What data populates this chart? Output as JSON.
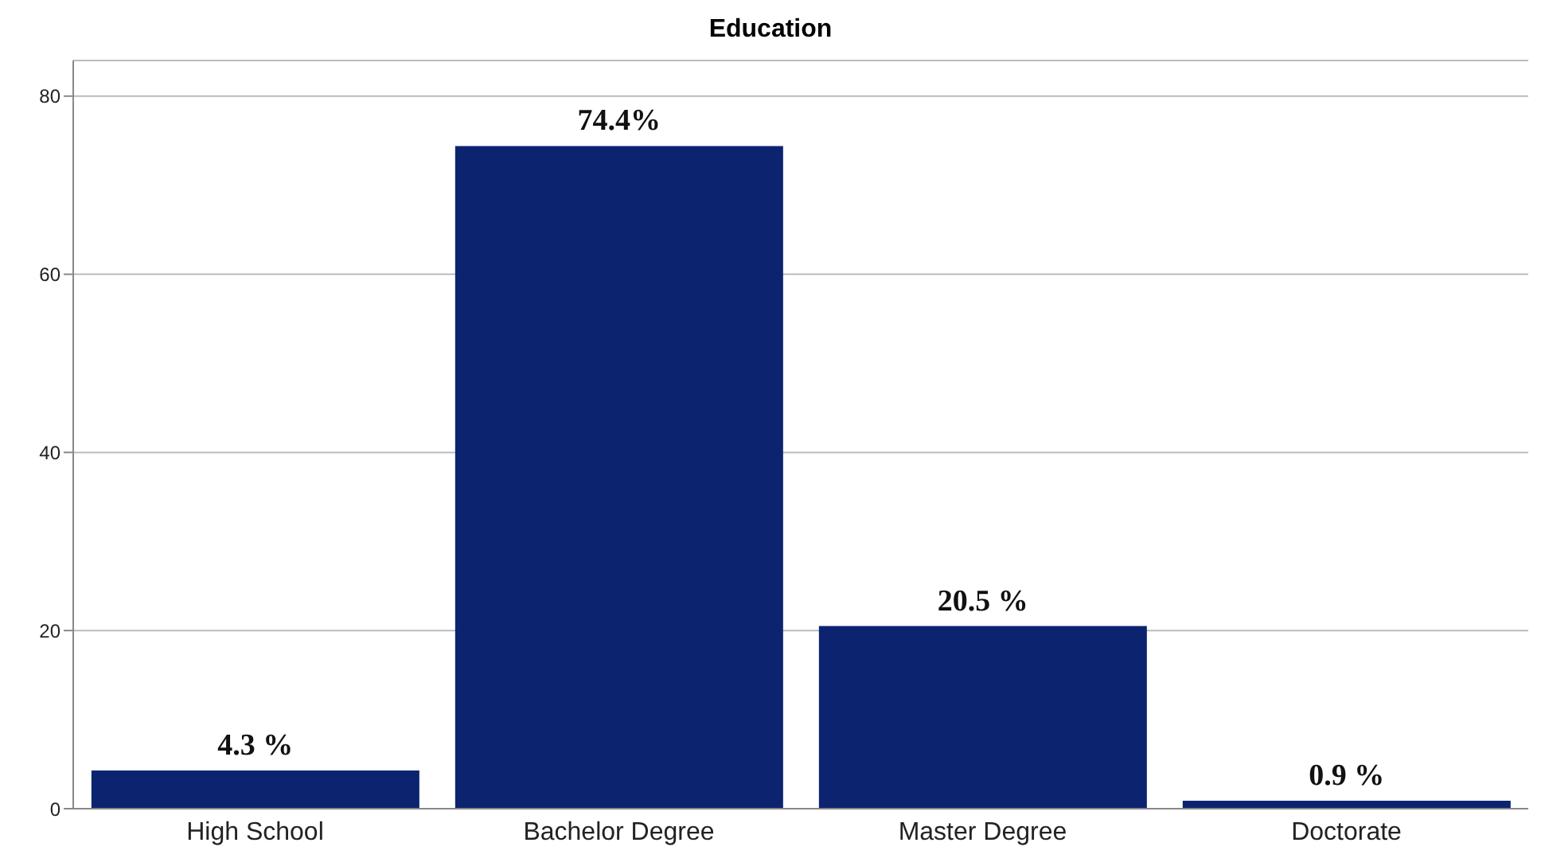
{
  "chart_data": {
    "type": "bar",
    "title": "Education",
    "categories": [
      "High School",
      "Bachelor Degree",
      "Master Degree",
      "Doctorate"
    ],
    "values": [
      4.3,
      74.4,
      20.5,
      0.9
    ],
    "value_labels": [
      "4.3 %",
      "74.4%",
      "20.5 %",
      "0.9 %"
    ],
    "color": "#0c2470",
    "ylim": [
      0,
      84
    ],
    "yticks": [
      0,
      20,
      40,
      60,
      80
    ],
    "grid": "y"
  }
}
